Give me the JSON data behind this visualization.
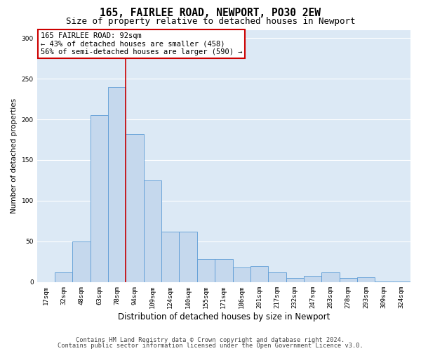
{
  "title1": "165, FAIRLEE ROAD, NEWPORT, PO30 2EW",
  "title2": "Size of property relative to detached houses in Newport",
  "xlabel": "Distribution of detached houses by size in Newport",
  "ylabel": "Number of detached properties",
  "categories": [
    "17sqm",
    "32sqm",
    "48sqm",
    "63sqm",
    "78sqm",
    "94sqm",
    "109sqm",
    "124sqm",
    "140sqm",
    "155sqm",
    "171sqm",
    "186sqm",
    "201sqm",
    "217sqm",
    "232sqm",
    "247sqm",
    "263sqm",
    "278sqm",
    "293sqm",
    "309sqm",
    "324sqm"
  ],
  "values": [
    0,
    12,
    50,
    205,
    240,
    182,
    125,
    62,
    62,
    28,
    28,
    18,
    20,
    12,
    5,
    8,
    12,
    5,
    6,
    1,
    1
  ],
  "bar_color": "#c5d8ed",
  "bar_edge_color": "#5b9bd5",
  "bar_edge_width": 0.6,
  "ylim": [
    0,
    310
  ],
  "yticks": [
    0,
    50,
    100,
    150,
    200,
    250,
    300
  ],
  "grid_color": "#ffffff",
  "bg_color": "#dce9f5",
  "annotation_text": "165 FAIRLEE ROAD: 92sqm\n← 43% of detached houses are smaller (458)\n56% of semi-detached houses are larger (590) →",
  "annotation_box_color": "#ffffff",
  "annotation_box_edge": "#cc0000",
  "vline_x_index": 4.5,
  "vline_color": "#cc0000",
  "footer1": "Contains HM Land Registry data © Crown copyright and database right 2024.",
  "footer2": "Contains public sector information licensed under the Open Government Licence v3.0.",
  "title1_fontsize": 10.5,
  "title2_fontsize": 9,
  "xlabel_fontsize": 8.5,
  "ylabel_fontsize": 7.5,
  "tick_fontsize": 6.5,
  "annotation_fontsize": 7.5,
  "footer_fontsize": 6.2
}
